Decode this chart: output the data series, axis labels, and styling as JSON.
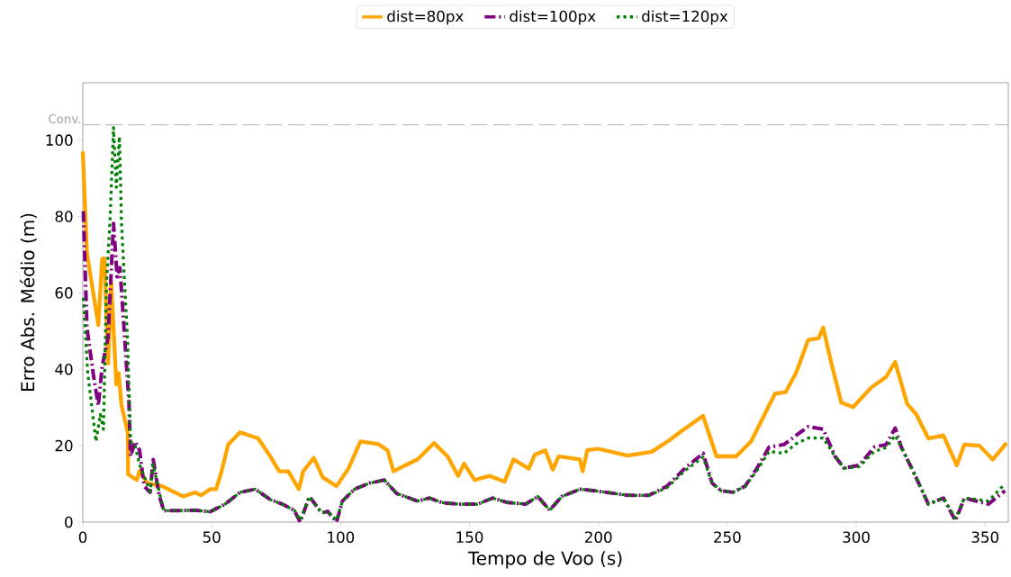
{
  "chart_data": {
    "type": "line",
    "xlabel": "Tempo de Voo (s)",
    "ylabel": "Erro Abs. Médio (m)",
    "xlim": [
      0,
      359
    ],
    "ylim": [
      0,
      115
    ],
    "xticks": [
      0,
      50,
      100,
      150,
      200,
      250,
      300,
      350
    ],
    "yticks": [
      0,
      20,
      40,
      60,
      80,
      100
    ],
    "legend": "top",
    "grid": false,
    "ref_lines": [
      {
        "axis": "y",
        "value": 104,
        "label": "Conv.",
        "color": "#a0a0a0",
        "line_style": "dashed"
      }
    ],
    "series": [
      {
        "name": "dist=80px",
        "color": "#ffa500",
        "line_style": "solid",
        "x": [
          0,
          1.6,
          6,
          7.5,
          8.4,
          9.8,
          11,
          13,
          13.9,
          15,
          17.4,
          17.6,
          20.9,
          22,
          25,
          30.8,
          39,
          43.6,
          45.9,
          49.4,
          51.7,
          53.5,
          56.4,
          61,
          64.6,
          68,
          72.7,
          76.2,
          79.7,
          83.8,
          85.5,
          89.6,
          93.1,
          98.4,
          103,
          107.7,
          114.7,
          118.2,
          120.5,
          125.2,
          129.8,
          136.2,
          141.5,
          145.6,
          147.9,
          152,
          157.8,
          163.6,
          167.1,
          173,
          175.3,
          179.4,
          182.3,
          184.6,
          192.8,
          193.9,
          195.7,
          199.8,
          211.4,
          220.7,
          227.7,
          232.4,
          240.6,
          245.8,
          253.4,
          259.2,
          263.9,
          268.5,
          272.6,
          276.7,
          281.4,
          285.4,
          287.2,
          290.1,
          294.2,
          298.8,
          305.8,
          311.6,
          315.1,
          319.8,
          323.3,
          328,
          333.8,
          339,
          342,
          347.8,
          353,
          358.3
        ],
        "values": [
          97,
          70.4,
          51.6,
          68.9,
          69,
          41.5,
          63,
          36,
          39,
          30.5,
          23.5,
          12.5,
          11,
          13.4,
          10.2,
          9.4,
          6.7,
          7.8,
          7,
          8.6,
          8.6,
          12.5,
          20.3,
          23.5,
          22.7,
          21.9,
          17.2,
          13.3,
          13.3,
          8.6,
          13.3,
          16.8,
          11.7,
          9.4,
          14,
          21.1,
          20.4,
          18.8,
          13.3,
          14.9,
          16.4,
          20.7,
          17.2,
          12.1,
          15.3,
          11,
          12.1,
          10.6,
          16.4,
          14,
          17.6,
          18.8,
          13.7,
          17.2,
          16.4,
          13.3,
          18.8,
          19.2,
          17.4,
          18.4,
          21.5,
          23.9,
          27.8,
          17.2,
          17.2,
          21.1,
          27.4,
          33.6,
          34,
          39.1,
          47.7,
          48.1,
          50.9,
          42.3,
          31.3,
          30.1,
          35.2,
          38,
          41.9,
          30.9,
          28.2,
          21.9,
          22.7,
          14.9,
          20.3,
          20,
          16.4,
          20.7
        ]
      },
      {
        "name": "dist=100px",
        "color": "#800080",
        "line_style": "dashed",
        "x": [
          0.2,
          1.6,
          4,
          6,
          7.5,
          9.8,
          11.9,
          13.3,
          14.4,
          17.9,
          18.5,
          20.3,
          22,
          23.8,
          26.1,
          27.3,
          29.6,
          31.4,
          36.6,
          43.6,
          49.4,
          51.7,
          55.2,
          61,
          66.9,
          72.7,
          77.4,
          82,
          84.3,
          87.9,
          92.6,
          95,
          98.4,
          100.7,
          105.4,
          111.2,
          117,
          121.7,
          129.8,
          134.5,
          139.2,
          146.2,
          153.2,
          159,
          164.8,
          171.8,
          176.5,
          181.1,
          185.8,
          192.8,
          198.6,
          211.4,
          219.6,
          226.6,
          233.6,
          240.6,
          244.1,
          247.6,
          252.2,
          256.9,
          261.5,
          266.2,
          272,
          276.7,
          281.4,
          287.2,
          291.8,
          295.3,
          301.2,
          307,
          311.6,
          315.1,
          317.5,
          322.1,
          328,
          333.8,
          338.5,
          342,
          351.3,
          357.7
        ],
        "values": [
          81.4,
          50.9,
          39,
          30.5,
          40.7,
          48.5,
          78.2,
          64.2,
          66.6,
          31.3,
          17.2,
          21.1,
          18.8,
          9.4,
          7.8,
          16.4,
          7,
          3,
          3,
          3.1,
          2.7,
          3.5,
          4.7,
          7.8,
          8.6,
          5.9,
          4.7,
          3.1,
          0,
          6.7,
          2.4,
          2.8,
          0,
          5.5,
          8.6,
          10.2,
          11,
          7.5,
          5.5,
          6.3,
          5.1,
          4.7,
          4.7,
          6.3,
          5.1,
          4.7,
          6.7,
          3.1,
          6.7,
          8.6,
          8.2,
          7,
          7,
          9.4,
          14.1,
          18,
          10.2,
          8.2,
          7.8,
          9.4,
          14.1,
          19.6,
          20.3,
          22.7,
          25,
          24.3,
          17.2,
          14.1,
          14.9,
          19.6,
          20.3,
          24.6,
          19.6,
          13.3,
          4.7,
          6.3,
          0.4,
          6.3,
          4.7,
          8.2
        ]
      },
      {
        "name": "dist=120px",
        "color": "#008000",
        "line_style": "dotted",
        "x": [
          0.2,
          1.9,
          5.1,
          6.8,
          8,
          9.2,
          10.6,
          11.9,
          13,
          14.2,
          15,
          17.4,
          18.5,
          20.3,
          22,
          23.8,
          26.1,
          27.3,
          29.6,
          31.4,
          36.6,
          43.6,
          49.4,
          51.7,
          55.2,
          61,
          66.9,
          72.7,
          77.4,
          82,
          84.3,
          87.9,
          92.6,
          95,
          98.4,
          100.7,
          105.4,
          111.2,
          117,
          121.7,
          129.8,
          134.5,
          139.2,
          146.2,
          153.2,
          159,
          164.8,
          171.8,
          176.5,
          181.1,
          185.8,
          192.8,
          198.6,
          211.4,
          219.6,
          226.6,
          233.6,
          240.6,
          244.1,
          247.6,
          252.2,
          256.9,
          261.5,
          266.2,
          272,
          276.7,
          281.4,
          287.2,
          291.8,
          295.3,
          301.2,
          307,
          311.6,
          315.1,
          317.5,
          322.1,
          328,
          333.8,
          338.5,
          342,
          351.3,
          357.7
        ],
        "values": [
          58.7,
          39,
          21.1,
          28.2,
          24.3,
          62.6,
          79.8,
          103.3,
          87.6,
          100.9,
          78.2,
          47,
          21.1,
          20,
          15,
          12,
          8,
          15,
          8,
          3,
          3,
          3.1,
          2.7,
          3.5,
          4.7,
          7.8,
          8.6,
          5.9,
          4.7,
          3.1,
          0.5,
          6.7,
          2.4,
          2.8,
          0.5,
          5.5,
          8.6,
          10.2,
          11,
          7.5,
          5.5,
          6.3,
          5.1,
          4.7,
          4.7,
          6.3,
          5.1,
          4.7,
          6.7,
          3.1,
          6.7,
          8.6,
          8.2,
          7,
          7,
          9,
          13.5,
          17,
          10.2,
          8.2,
          7.8,
          9.4,
          13.5,
          18.5,
          18,
          20.5,
          22,
          22,
          17.2,
          14.1,
          14.5,
          18.5,
          19.5,
          22.7,
          19.6,
          13.3,
          4.7,
          6.3,
          1,
          6.3,
          5.5,
          10
        ]
      }
    ]
  }
}
